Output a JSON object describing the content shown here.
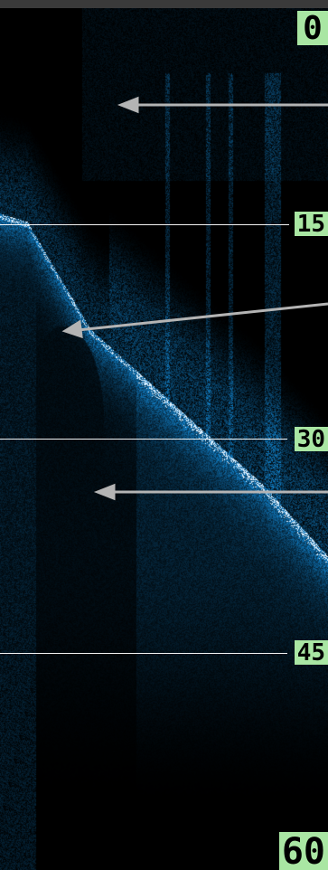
{
  "depth_scale": {
    "labels": [
      "0",
      "15",
      "30",
      "45",
      "60"
    ]
  },
  "colors": {
    "background": "#000000",
    "sonar_blue": "#2f8fd8",
    "bottom_highlight": "#e8f6ff",
    "label_background": "#a9e6a3",
    "pointer_gray": "#b4b4b4"
  }
}
